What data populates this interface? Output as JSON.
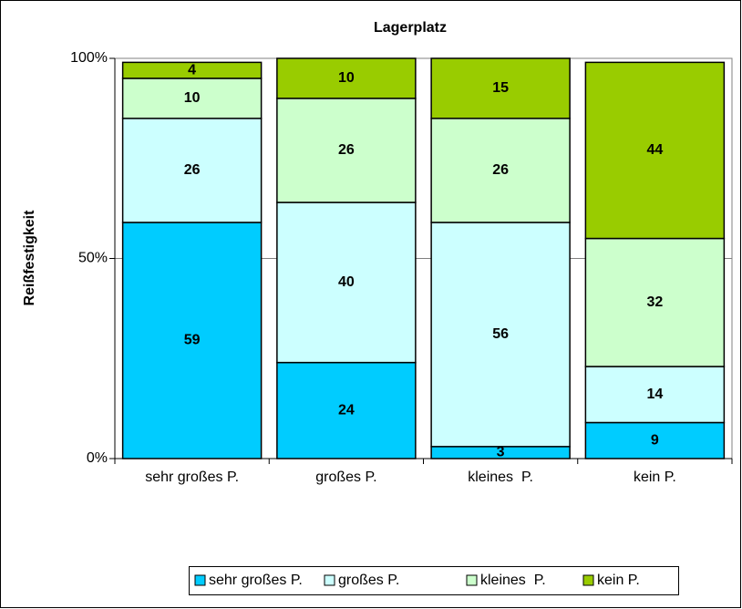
{
  "chart_data": {
    "type": "stacked_bar",
    "title": "Lagerplatz",
    "y_label": "Reißfestigkeit",
    "categories": [
      "sehr großes P.",
      "großes P.",
      "kleines  P.",
      "kein P."
    ],
    "series": [
      {
        "name": "sehr großes P.",
        "color": "#00ccff",
        "values": [
          59,
          24,
          3,
          9
        ]
      },
      {
        "name": "großes P.",
        "color": "#ccffff",
        "values": [
          26,
          40,
          56,
          14
        ]
      },
      {
        "name": "kleines  P.",
        "color": "#ccffcc",
        "values": [
          10,
          26,
          26,
          32
        ]
      },
      {
        "name": "kein P.",
        "color": "#99cc00",
        "values": [
          4,
          10,
          15,
          44
        ]
      }
    ],
    "ylim": [
      0,
      100
    ],
    "yticks": [
      {
        "value": 0,
        "label": "0%"
      },
      {
        "value": 50,
        "label": "50%"
      },
      {
        "value": 100,
        "label": "100%"
      }
    ],
    "grid": true,
    "legend": "bottom"
  }
}
